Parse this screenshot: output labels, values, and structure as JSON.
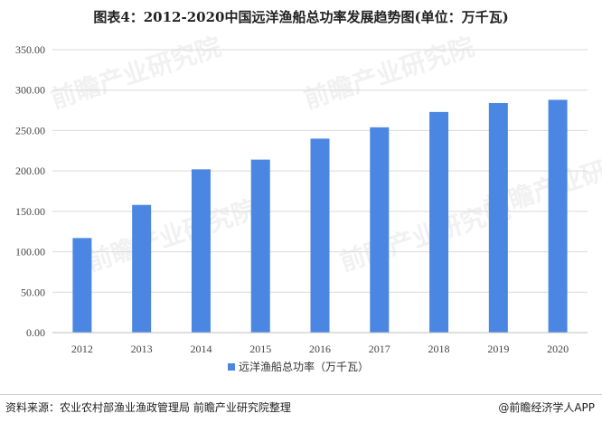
{
  "title": "图表4：2012-2020中国远洋渔船总功率发展趋势图(单位：万千瓦)",
  "watermark": "前瞻产业研究院",
  "source": "资料来源：农业农村部渔业渔政管理局 前瞻产业研究院整理",
  "credit": "@前瞻经济学人APP",
  "colors": {
    "bar": "#4a86e2",
    "grid": "#d9d9d9",
    "axis": "#bfbfbf"
  },
  "chart_data": {
    "type": "bar",
    "categories": [
      "2012",
      "2013",
      "2014",
      "2015",
      "2016",
      "2017",
      "2018",
      "2019",
      "2020"
    ],
    "series": [
      {
        "name": "远洋渔船总功率（万千瓦）",
        "values": [
          117,
          158,
          202,
          214,
          240,
          254,
          273,
          284,
          288
        ]
      }
    ],
    "yticks": [
      "0.00",
      "50.00",
      "100.00",
      "150.00",
      "200.00",
      "250.00",
      "300.00",
      "350.00"
    ],
    "ylim": [
      0,
      350
    ],
    "grid": true,
    "legend_position": "bottom"
  }
}
